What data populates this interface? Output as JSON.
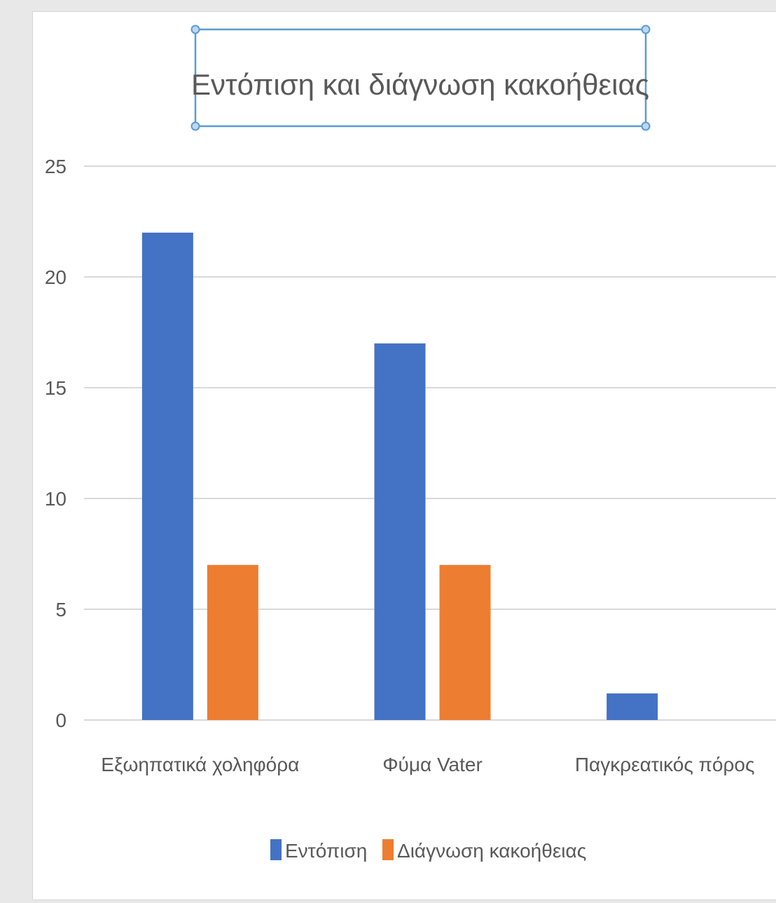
{
  "chart_data": {
    "type": "bar",
    "title": "Εντόπιση και διάγνωση κακοήθειας",
    "categories": [
      "Εξωηπατικά χοληφόρα",
      "Φύμα Vater",
      "Παγκρεατικός πόρος"
    ],
    "series": [
      {
        "name": "Εντόπιση",
        "values": [
          22,
          17,
          1.2
        ],
        "color": "#4472c4"
      },
      {
        "name": "Διάγνωση κακοήθειας",
        "values": [
          7,
          7,
          0
        ],
        "color": "#ed7d31"
      }
    ],
    "yticks": [
      "0",
      "5",
      "10",
      "15",
      "20",
      "25"
    ],
    "ylim": [
      0,
      25
    ],
    "grid": true,
    "legend_position": "bottom",
    "title_selected": true
  }
}
